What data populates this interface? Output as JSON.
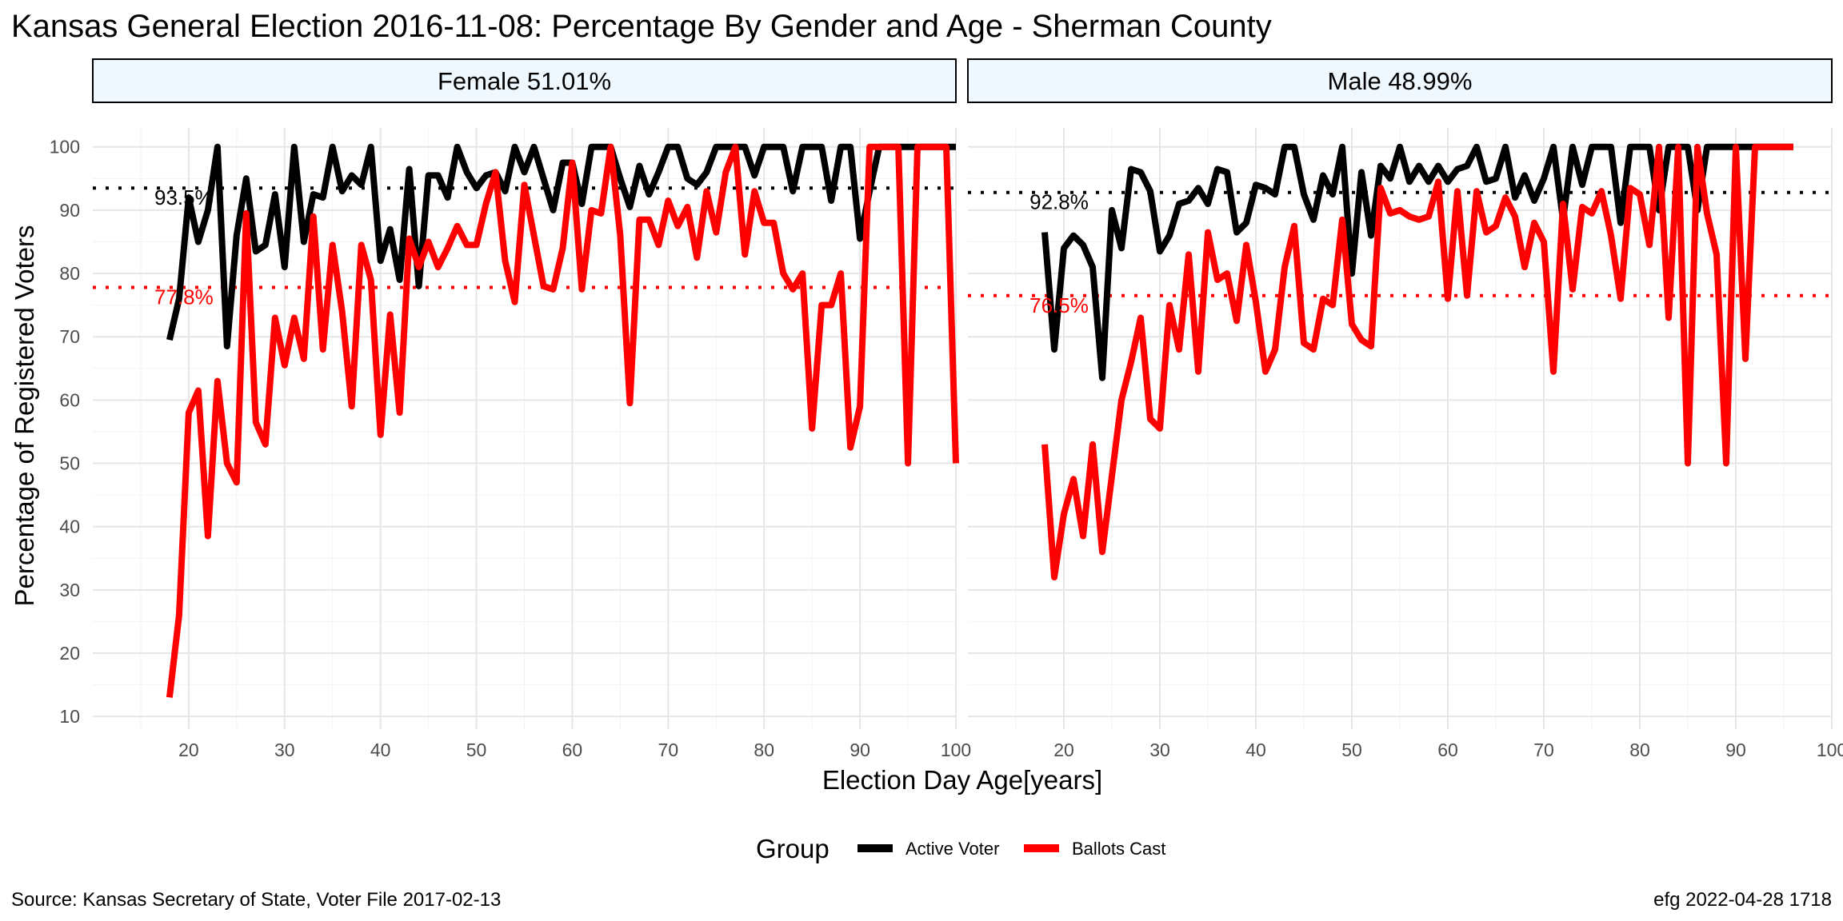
{
  "title": "Kansas General Election 2016-11-08:  Percentage By Gender and Age - Sherman County",
  "chart_data": {
    "type": "line",
    "xlabel": "Election Day Age[years]",
    "ylabel": "Percentage of Registered Voters",
    "xlim": [
      10,
      100
    ],
    "ylim": [
      8,
      103
    ],
    "x_ticks": [
      20,
      30,
      40,
      50,
      60,
      70,
      80,
      90,
      100
    ],
    "y_ticks": [
      10,
      20,
      30,
      40,
      50,
      60,
      70,
      80,
      90,
      100
    ],
    "grid": true,
    "legend": {
      "position": "bottom",
      "title": "Group",
      "entries": [
        {
          "name": "Active Voter",
          "color": "#000000"
        },
        {
          "name": "Ballots Cast",
          "color": "#ff0000"
        }
      ]
    },
    "colors": {
      "active": "#000000",
      "ballots": "#ff0000",
      "strip_fill": "#f0f8ff"
    },
    "panels": [
      {
        "strip_label": "Female 51.01%",
        "active_mean": 93.5,
        "active_mean_label": "93.5%",
        "ballots_mean": 77.8,
        "ballots_mean_label": "77.8%",
        "series": [
          {
            "key": "active",
            "x": [
              18,
              19,
              20,
              21,
              22,
              23,
              24,
              25,
              26,
              27,
              28,
              29,
              30,
              31,
              32,
              33,
              34,
              35,
              36,
              37,
              38,
              39,
              40,
              41,
              42,
              43,
              44,
              45,
              46,
              47,
              48,
              49,
              50,
              51,
              52,
              53,
              54,
              55,
              56,
              57,
              58,
              59,
              60,
              61,
              62,
              63,
              64,
              65,
              66,
              67,
              68,
              69,
              70,
              71,
              72,
              73,
              74,
              75,
              76,
              77,
              78,
              79,
              80,
              81,
              82,
              83,
              84,
              85,
              86,
              87,
              88,
              89,
              90,
              91,
              92,
              93,
              94,
              95,
              96,
              97,
              98,
              99,
              100
            ],
            "y": [
              69.5,
              76,
              92,
              85,
              90,
              100,
              68.5,
              86,
              95,
              83.5,
              84.5,
              92.5,
              81,
              100,
              85,
              92.5,
              92,
              100,
              93,
              95.5,
              94,
              100,
              82,
              87,
              79,
              96.5,
              78,
              95.5,
              95.5,
              92,
              100,
              96,
              93.5,
              95.5,
              96,
              93,
              100,
              96,
              100,
              95,
              90,
              97.5,
              97.5,
              91,
              100,
              100,
              100,
              95,
              90.5,
              97,
              92.5,
              96,
              100,
              100,
              95,
              94,
              96,
              100,
              100,
              100,
              100,
              95.5,
              100,
              100,
              100,
              93,
              100,
              100,
              100,
              91.5,
              100,
              100,
              85.5,
              93,
              100,
              100,
              100,
              100,
              100,
              100,
              100,
              100,
              100
            ]
          },
          {
            "key": "ballots",
            "x": [
              18,
              19,
              20,
              21,
              22,
              23,
              24,
              25,
              26,
              27,
              28,
              29,
              30,
              31,
              32,
              33,
              34,
              35,
              36,
              37,
              38,
              39,
              40,
              41,
              42,
              43,
              44,
              45,
              46,
              47,
              48,
              49,
              50,
              51,
              52,
              53,
              54,
              55,
              56,
              57,
              58,
              59,
              60,
              61,
              62,
              63,
              64,
              65,
              66,
              67,
              68,
              69,
              70,
              71,
              72,
              73,
              74,
              75,
              76,
              77,
              78,
              79,
              80,
              81,
              82,
              83,
              84,
              85,
              86,
              87,
              88,
              89,
              90,
              91,
              92,
              93,
              94,
              95,
              96,
              97,
              98,
              99,
              100
            ],
            "y": [
              13,
              26,
              58,
              61.5,
              38.5,
              63,
              50,
              47,
              89.5,
              56.5,
              53,
              73,
              65.5,
              73,
              66.5,
              89,
              68,
              84.5,
              74,
              59,
              84.5,
              79,
              54.5,
              73.5,
              58,
              85.5,
              81,
              85,
              81,
              84,
              87.5,
              84.5,
              84.5,
              91,
              96,
              82,
              75.5,
              94,
              86,
              78,
              77.5,
              84,
              97.5,
              77.5,
              90,
              89.5,
              100,
              86,
              59.5,
              88.5,
              88.5,
              84.5,
              91.5,
              87.5,
              90.5,
              82.5,
              93,
              86.5,
              96,
              100,
              83,
              93,
              88,
              88,
              80,
              77.5,
              80,
              55.5,
              75,
              75,
              80,
              52.5,
              59,
              100,
              100,
              100,
              100,
              50,
              100,
              100,
              100,
              100,
              50
            ]
          }
        ]
      },
      {
        "strip_label": "Male 48.99%",
        "active_mean": 92.8,
        "active_mean_label": "92.8%",
        "ballots_mean": 76.5,
        "ballots_mean_label": "76.5%",
        "series": [
          {
            "key": "active",
            "x": [
              18,
              19,
              20,
              21,
              22,
              23,
              24,
              25,
              26,
              27,
              28,
              29,
              30,
              31,
              32,
              33,
              34,
              35,
              36,
              37,
              38,
              39,
              40,
              41,
              42,
              43,
              44,
              45,
              46,
              47,
              48,
              49,
              50,
              51,
              52,
              53,
              54,
              55,
              56,
              57,
              58,
              59,
              60,
              61,
              62,
              63,
              64,
              65,
              66,
              67,
              68,
              69,
              70,
              71,
              72,
              73,
              74,
              75,
              76,
              77,
              78,
              79,
              80,
              81,
              82,
              83,
              84,
              85,
              86,
              87,
              88,
              89,
              90,
              91,
              92,
              93,
              94,
              95,
              96
            ],
            "y": [
              86.5,
              68,
              84,
              86,
              84.5,
              81,
              63.5,
              90,
              84,
              96.5,
              96,
              93,
              83.5,
              86,
              91,
              91.5,
              93.5,
              91,
              96.5,
              96,
              86.5,
              88,
              94,
              93.5,
              92.5,
              100,
              100,
              92.5,
              88.5,
              95.5,
              92.5,
              100,
              80,
              96,
              86,
              97,
              95,
              100,
              94.5,
              97,
              94.5,
              97,
              94.5,
              96.5,
              97,
              100,
              94.5,
              95,
              100,
              92,
              95.5,
              91.5,
              95,
              100,
              88.5,
              100,
              94,
              100,
              100,
              100,
              88,
              100,
              100,
              100,
              90,
              100,
              100,
              100,
              90,
              100,
              100,
              100,
              100,
              100,
              100,
              100,
              100,
              100,
              100
            ]
          },
          {
            "key": "ballots",
            "x": [
              18,
              19,
              20,
              21,
              22,
              23,
              24,
              25,
              26,
              27,
              28,
              29,
              30,
              31,
              32,
              33,
              34,
              35,
              36,
              37,
              38,
              39,
              40,
              41,
              42,
              43,
              44,
              45,
              46,
              47,
              48,
              49,
              50,
              51,
              52,
              53,
              54,
              55,
              56,
              57,
              58,
              59,
              60,
              61,
              62,
              63,
              64,
              65,
              66,
              67,
              68,
              69,
              70,
              71,
              72,
              73,
              74,
              75,
              76,
              77,
              78,
              79,
              80,
              81,
              82,
              83,
              84,
              85,
              86,
              87,
              88,
              89,
              90,
              91,
              92,
              93,
              94,
              95,
              96
            ],
            "y": [
              53,
              32,
              42,
              47.5,
              38.5,
              53,
              36,
              48,
              60,
              66,
              73,
              57,
              55.5,
              75,
              68,
              83,
              64.5,
              86.5,
              79,
              80,
              72.5,
              84.5,
              75.5,
              64.5,
              68,
              81,
              87.5,
              69,
              68,
              76,
              75,
              88.5,
              72,
              69.5,
              68.5,
              93.5,
              89.5,
              90,
              89,
              88.5,
              89,
              94.5,
              76,
              93,
              76.5,
              93,
              86.5,
              87.5,
              92,
              89,
              81,
              88,
              85,
              64.5,
              91,
              77.5,
              90.5,
              89.5,
              93,
              86,
              76,
              93.5,
              92.5,
              84.5,
              100,
              73,
              100,
              50,
              100,
              89.5,
              83,
              50,
              100,
              66.5,
              100,
              100,
              100,
              100,
              100
            ]
          }
        ]
      }
    ]
  },
  "source": "Source:  Kansas Secretary of State, Voter File  2017-02-13",
  "credit": "efg 2022-04-28 1718"
}
